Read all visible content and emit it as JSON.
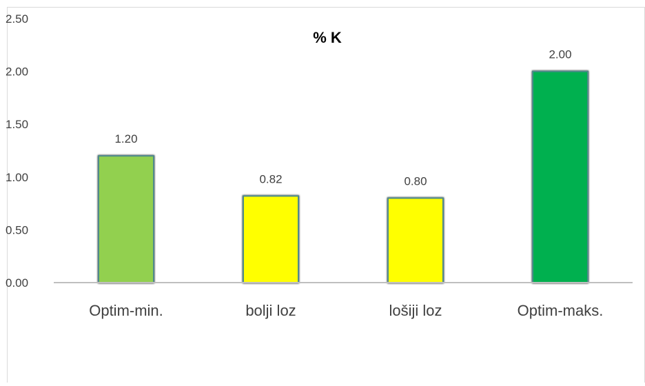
{
  "chart_data": {
    "type": "bar",
    "title": "% K",
    "xlabel": "",
    "ylabel": "",
    "categories": [
      "Optim-min.",
      "bolji loz",
      "lošiji loz",
      "Optim-maks."
    ],
    "values": [
      1.2,
      0.82,
      0.8,
      2.0
    ],
    "value_labels": [
      "1.20",
      "0.82",
      "0.80",
      "2.00"
    ],
    "ylim": [
      0,
      2.5
    ],
    "yticks": [
      0.0,
      0.5,
      1.0,
      1.5,
      2.0,
      2.5
    ],
    "ytick_labels": [
      "0.00",
      "0.50",
      "1.00",
      "1.50",
      "2.00",
      "2.50"
    ],
    "grid": false,
    "legend": "none",
    "colors": {
      "bar_fills": [
        "#92d050",
        "#ffff00",
        "#ffff00",
        "#00b050"
      ],
      "bar_edge": "#4f8a8b",
      "axis": "#bfbfbf",
      "text": "#404040",
      "title": "#000000"
    }
  }
}
